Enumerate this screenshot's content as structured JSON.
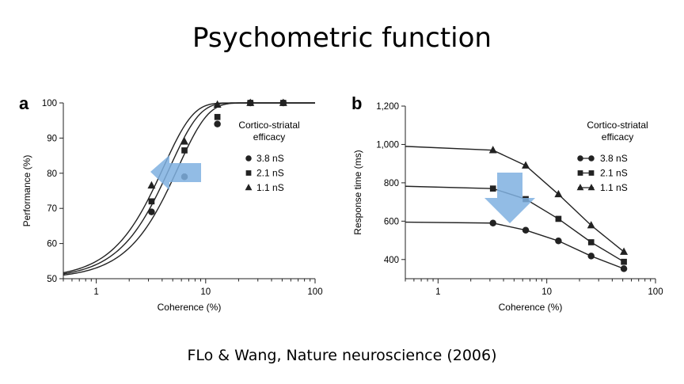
{
  "slide": {
    "title": "Psychometric function",
    "citation": "FLo & Wang, Nature neuroscience (2006)"
  },
  "colors": {
    "curve": "#222222",
    "arrow": "#7fb0e0"
  },
  "chart_data": [
    {
      "panel": "a",
      "type": "line",
      "xscale": "log",
      "xlim": [
        0.5,
        100
      ],
      "ylim": [
        50,
        100
      ],
      "xlabel": "Coherence (%)",
      "ylabel": "Performance (%)",
      "xticks": [
        1,
        10,
        100
      ],
      "xtick_labels": [
        "1",
        "10",
        "100"
      ],
      "yticks": [
        50,
        60,
        70,
        80,
        90,
        100
      ],
      "ytick_labels": [
        "50",
        "60",
        "70",
        "80",
        "90",
        "100"
      ],
      "legend": {
        "title": "Cortico-striatal efficacy",
        "title_lines": [
          "Cortico-striatal",
          "efficacy"
        ],
        "placement": "right"
      },
      "annotation": {
        "type": "arrow",
        "direction": "left",
        "color": "#7fb0e0"
      },
      "series": [
        {
          "name": "3.8 nS",
          "marker": "circle",
          "x": [
            3.2,
            6.4,
            12.8,
            25.6,
            51.2
          ],
          "y": [
            69,
            79,
            94,
            100,
            100
          ],
          "fit": {
            "threshold": 5.6,
            "slope": 1.6
          }
        },
        {
          "name": "2.1 nS",
          "marker": "square",
          "x": [
            3.2,
            6.4,
            12.8,
            25.6,
            51.2
          ],
          "y": [
            72,
            86.5,
            96,
            100,
            100
          ],
          "fit": {
            "threshold": 4.7,
            "slope": 1.6
          }
        },
        {
          "name": "1.1 nS",
          "marker": "triangle",
          "x": [
            3.2,
            6.4,
            12.8,
            25.6,
            51.2
          ],
          "y": [
            76.5,
            89,
            99.5,
            100,
            100
          ],
          "fit": {
            "threshold": 4.1,
            "slope": 1.6
          }
        }
      ]
    },
    {
      "panel": "b",
      "type": "line",
      "xscale": "log",
      "xlim": [
        0.5,
        100
      ],
      "ylim": [
        300,
        1200
      ],
      "xlabel": "Coherence (%)",
      "ylabel": "Response time (ms)",
      "xticks": [
        1,
        10,
        100
      ],
      "xtick_labels": [
        "1",
        "10",
        "100"
      ],
      "yticks": [
        400,
        600,
        800,
        1000,
        1200
      ],
      "ytick_labels": [
        "400",
        "600",
        "800",
        "1,000",
        "1,200"
      ],
      "legend": {
        "title": "Cortico-striatal efficacy",
        "title_lines": [
          "Cortico-striatal",
          "efficacy"
        ],
        "placement": "right"
      },
      "annotation": {
        "type": "arrow",
        "direction": "down",
        "color": "#7fb0e0"
      },
      "series": [
        {
          "name": "3.8 nS",
          "marker": "circle",
          "x": [
            0.5,
            3.2,
            6.4,
            12.8,
            25.6,
            51.2
          ],
          "y": [
            595,
            590,
            553,
            497,
            418,
            352
          ]
        },
        {
          "name": "2.1 nS",
          "marker": "square",
          "x": [
            0.5,
            3.2,
            6.4,
            12.8,
            25.6,
            51.2
          ],
          "y": [
            782,
            770,
            715,
            612,
            490,
            388
          ]
        },
        {
          "name": "1.1 nS",
          "marker": "triangle",
          "x": [
            0.5,
            3.2,
            6.4,
            12.8,
            25.6,
            51.2
          ],
          "y": [
            990,
            970,
            890,
            740,
            578,
            440
          ]
        }
      ]
    }
  ]
}
